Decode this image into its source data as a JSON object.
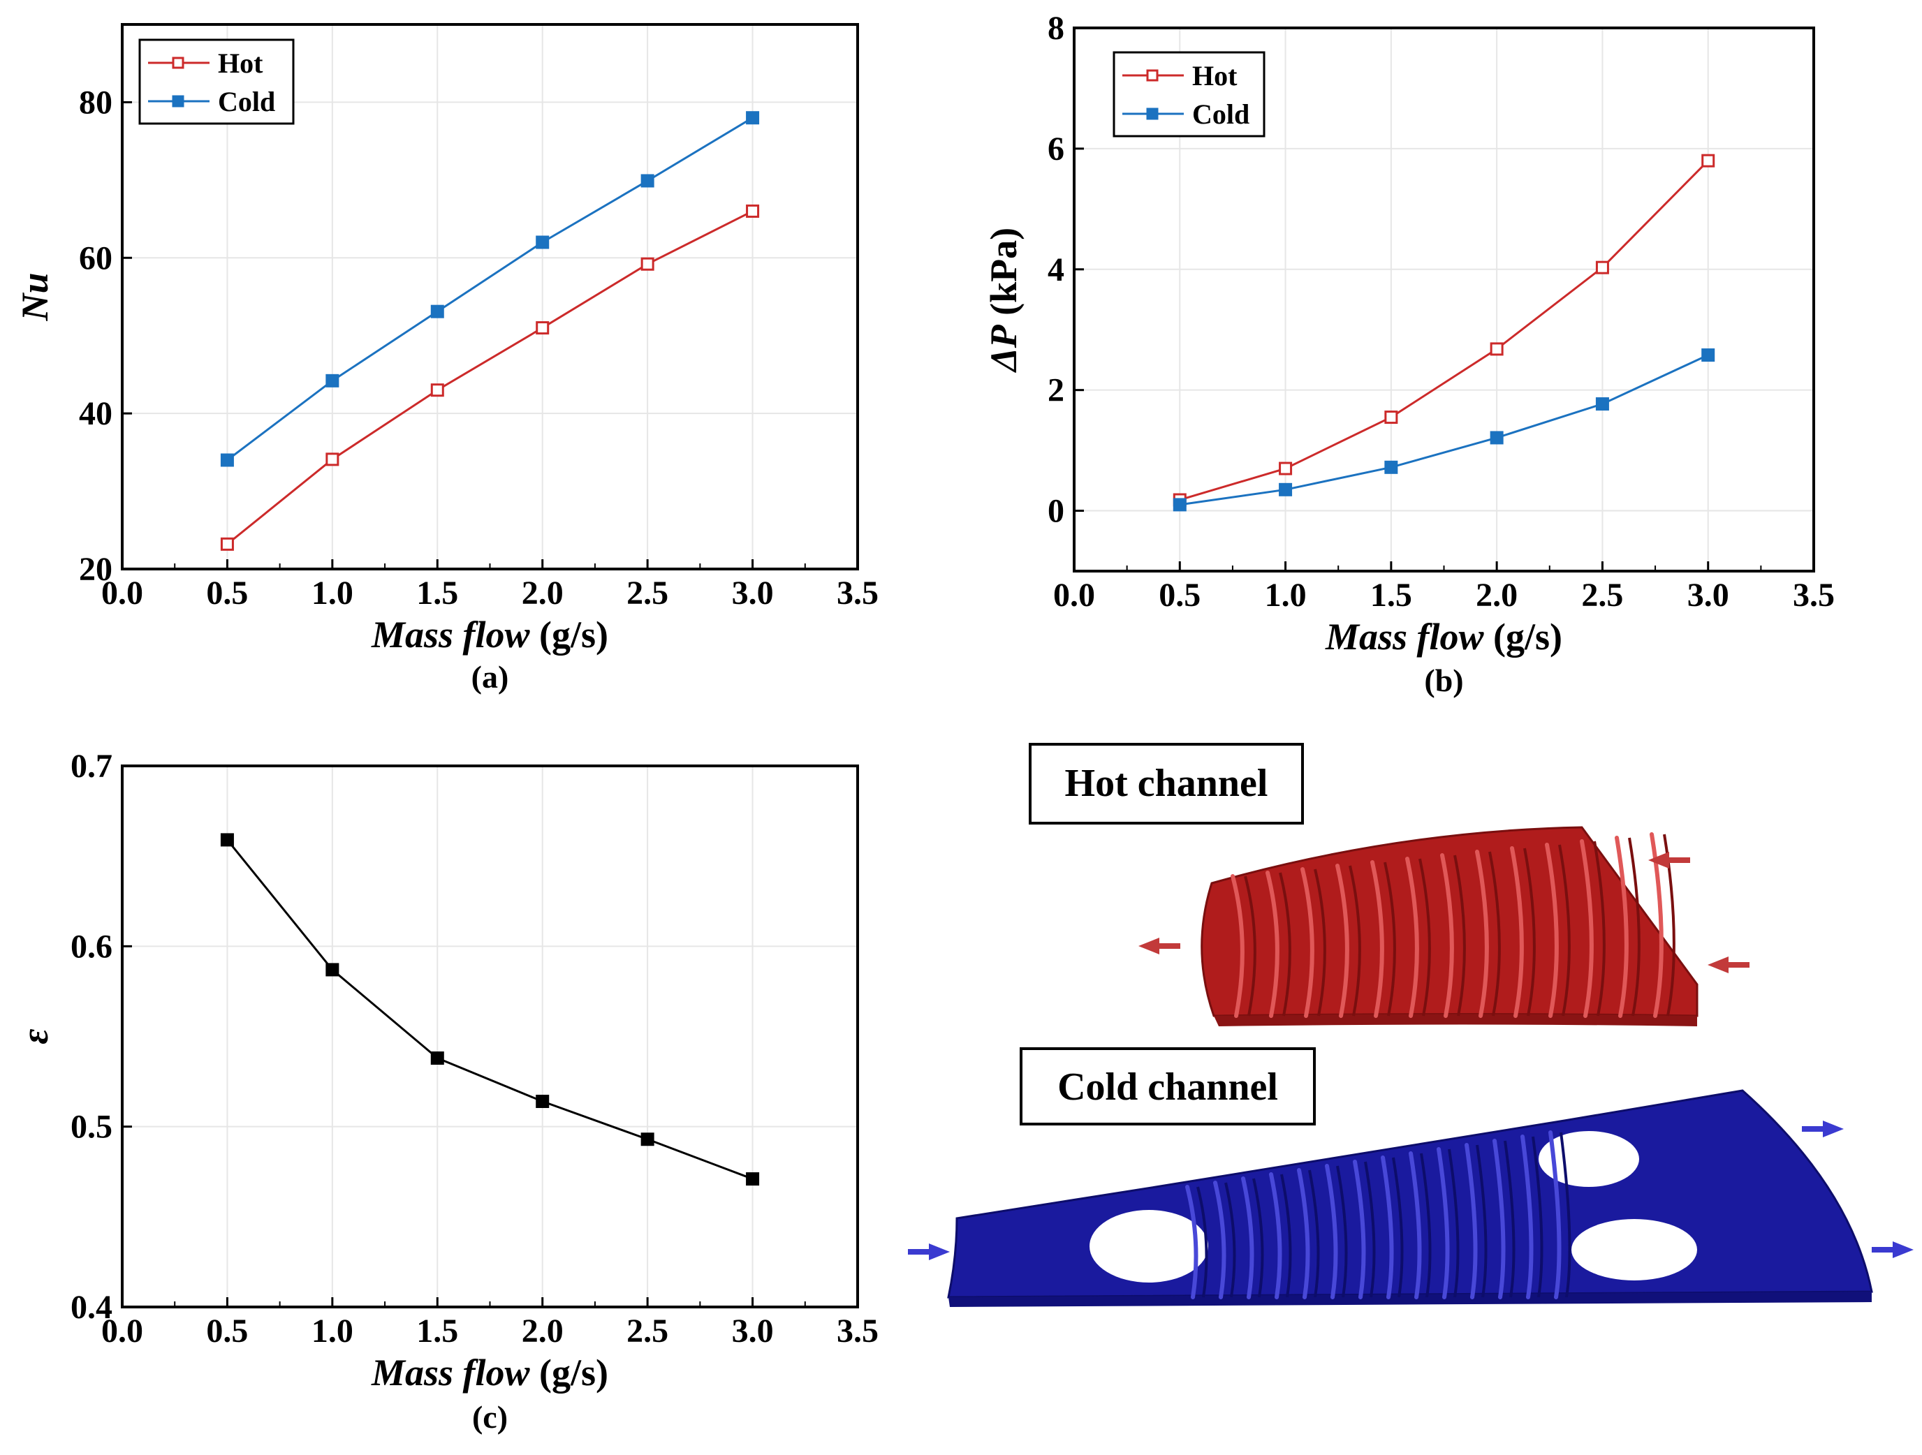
{
  "chart_data": [
    {
      "type": "line",
      "panel": "(a)",
      "xlabel_italic": "Mass flow",
      "xlabel_unit": " (g/s)",
      "ylabel": "Nu",
      "xlim": [
        0.0,
        3.5
      ],
      "ylim": [
        20,
        90
      ],
      "xticks": [
        "0.0",
        "0.5",
        "1.0",
        "1.5",
        "2.0",
        "2.5",
        "3.0",
        "3.5"
      ],
      "yticks": [
        "20",
        "40",
        "60",
        "80"
      ],
      "grid": true,
      "legend_position": "top-left",
      "x": [
        0.5,
        1.0,
        1.5,
        2.0,
        2.5,
        3.0
      ],
      "series": [
        {
          "name": "Hot",
          "color": "#cc2a2a",
          "marker": "hollow-square",
          "values": [
            23.2,
            34.1,
            43.0,
            51.0,
            59.2,
            66.0
          ]
        },
        {
          "name": "Cold",
          "color": "#1b72c0",
          "marker": "filled-square",
          "values": [
            34.0,
            44.2,
            53.1,
            62.0,
            69.9,
            78.0
          ]
        }
      ]
    },
    {
      "type": "line",
      "panel": "(b)",
      "xlabel_italic": "Mass flow",
      "xlabel_unit": " (g/s)",
      "ylabel_italic": "ΔP",
      "ylabel_unit": " (kPa)",
      "xlim": [
        0.0,
        3.5
      ],
      "ylim": [
        -1,
        8
      ],
      "xticks": [
        "0.0",
        "0.5",
        "1.0",
        "1.5",
        "2.0",
        "2.5",
        "3.0",
        "3.5"
      ],
      "yticks": [
        "0",
        "2",
        "4",
        "6",
        "8"
      ],
      "grid": true,
      "legend_position": "top-left",
      "x": [
        0.5,
        1.0,
        1.5,
        2.0,
        2.5,
        3.0
      ],
      "series": [
        {
          "name": "Hot",
          "color": "#cc2a2a",
          "marker": "hollow-square",
          "values": [
            0.18,
            0.7,
            1.55,
            2.68,
            4.03,
            5.8
          ]
        },
        {
          "name": "Cold",
          "color": "#1b72c0",
          "marker": "filled-square",
          "values": [
            0.1,
            0.35,
            0.72,
            1.21,
            1.77,
            2.58
          ]
        }
      ]
    },
    {
      "type": "line",
      "panel": "(c)",
      "xlabel_italic": "Mass flow",
      "xlabel_unit": " (g/s)",
      "ylabel": "ε",
      "xlim": [
        0.0,
        3.5
      ],
      "ylim": [
        0.4,
        0.7
      ],
      "xticks": [
        "0.0",
        "0.5",
        "1.0",
        "1.5",
        "2.0",
        "2.5",
        "3.0",
        "3.5"
      ],
      "yticks": [
        "0.4",
        "0.5",
        "0.6",
        "0.7"
      ],
      "grid": true,
      "x": [
        0.5,
        1.0,
        1.5,
        2.0,
        2.5,
        3.0
      ],
      "series": [
        {
          "color": "#000000",
          "marker": "filled-square",
          "values": [
            0.659,
            0.587,
            0.538,
            0.514,
            0.493,
            0.471
          ]
        }
      ]
    }
  ],
  "illustration": {
    "hot_label": "Hot channel",
    "cold_label": "Cold channel",
    "hot_color": "#b01c1c",
    "cold_color": "#1a1a9e"
  }
}
